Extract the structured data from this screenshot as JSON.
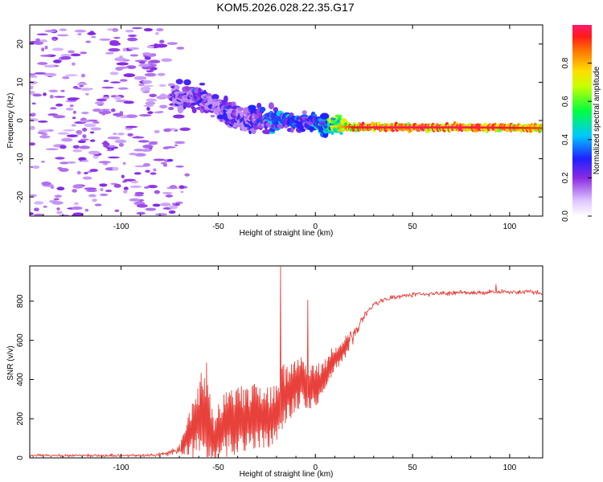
{
  "title": "KOM5.2026.028.22.35.G17",
  "colors": {
    "snr_line": "#e8403a",
    "axis": "#000000"
  },
  "colorbar": {
    "label": "Normalized spectral amplitude",
    "ticks": [
      "0.0",
      "0.2",
      "0.4",
      "0.6",
      "0.8"
    ],
    "tick_values": [
      0.0,
      0.2,
      0.4,
      0.6,
      0.8
    ],
    "range": [
      0,
      1
    ]
  },
  "chart_data": [
    {
      "type": "heatmap",
      "name": "spectrogram",
      "xlabel": "Height of straight line (km)",
      "ylabel": "Frequency (Hz)",
      "xlim": [
        -147,
        117
      ],
      "ylim": [
        -25,
        25
      ],
      "xticks": [
        -100,
        -50,
        0,
        50,
        100
      ],
      "xtick_labels": [
        "-100",
        "-50",
        "0",
        "50",
        "100"
      ],
      "yticks": [
        -20,
        -10,
        0,
        10,
        20
      ],
      "ytick_labels": [
        "-20",
        "-10",
        "0",
        "10",
        "20"
      ],
      "ridge": {
        "x": [
          -72,
          -65,
          -60,
          -55,
          -50,
          -45,
          -40,
          -35,
          -30,
          -25,
          -20,
          -15,
          -10,
          -5,
          0,
          5,
          10,
          20,
          40,
          60,
          80,
          100,
          117
        ],
        "y": [
          6.5,
          6,
          6,
          5,
          3,
          2,
          1,
          0,
          0,
          0.5,
          0,
          0,
          -0.5,
          -0.5,
          -1,
          -1.5,
          -1.5,
          -1.8,
          -1.8,
          -1.8,
          -1.8,
          -1.9,
          -2
        ],
        "amplitude": [
          0.25,
          0.3,
          0.35,
          0.3,
          0.25,
          0.35,
          0.3,
          0.3,
          0.3,
          0.4,
          0.45,
          0.4,
          0.45,
          0.35,
          0.45,
          0.5,
          0.7,
          0.9,
          0.95,
          0.95,
          0.95,
          0.9,
          0.85
        ]
      }
    },
    {
      "type": "line",
      "name": "snr",
      "xlabel": "Height of straight line (km)",
      "ylabel": "SNR (v/v)",
      "xlim": [
        -147,
        117
      ],
      "ylim": [
        0,
        980
      ],
      "xticks": [
        -100,
        -50,
        0,
        50,
        100
      ],
      "xtick_labels": [
        "-100",
        "-50",
        "0",
        "50",
        "100"
      ],
      "yticks": [
        0,
        200,
        400,
        600,
        800
      ],
      "ytick_labels": [
        "0",
        "200",
        "400",
        "600",
        "800"
      ],
      "envelope_x": [
        -147,
        -110,
        -90,
        -80,
        -75,
        -70,
        -66,
        -63,
        -60,
        -58,
        -56,
        -54,
        -52,
        -50,
        -45,
        -40,
        -35,
        -30,
        -25,
        -22,
        -20,
        -18,
        -15,
        -10,
        -5,
        0,
        5,
        10,
        15,
        20,
        25,
        30,
        40,
        50,
        60,
        70,
        80,
        90,
        100,
        110,
        117
      ],
      "envelope_mean": [
        12,
        12,
        12,
        15,
        25,
        45,
        100,
        160,
        200,
        240,
        200,
        150,
        90,
        130,
        180,
        200,
        200,
        220,
        200,
        210,
        220,
        290,
        320,
        380,
        380,
        360,
        420,
        500,
        560,
        640,
        720,
        790,
        820,
        835,
        840,
        842,
        842,
        845,
        848,
        846,
        845
      ],
      "envelope_amp": [
        6,
        6,
        6,
        8,
        10,
        25,
        80,
        150,
        180,
        200,
        180,
        150,
        120,
        140,
        160,
        160,
        150,
        150,
        150,
        140,
        140,
        160,
        150,
        120,
        120,
        100,
        90,
        70,
        50,
        30,
        20,
        15,
        10,
        10,
        10,
        10,
        10,
        12,
        12,
        10,
        10
      ],
      "spikes": [
        {
          "x": -18,
          "y": 975
        },
        {
          "x": -4,
          "y": 805
        },
        {
          "x": -56,
          "y": 485
        },
        {
          "x": 93,
          "y": 885
        }
      ]
    }
  ]
}
